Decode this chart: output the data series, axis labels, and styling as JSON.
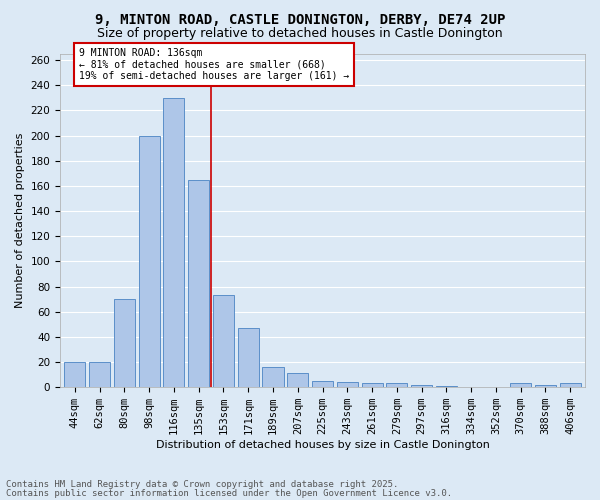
{
  "title": "9, MINTON ROAD, CASTLE DONINGTON, DERBY, DE74 2UP",
  "subtitle": "Size of property relative to detached houses in Castle Donington",
  "xlabel": "Distribution of detached houses by size in Castle Donington",
  "ylabel": "Number of detached properties",
  "footnote1": "Contains HM Land Registry data © Crown copyright and database right 2025.",
  "footnote2": "Contains public sector information licensed under the Open Government Licence v3.0.",
  "bar_labels": [
    "44sqm",
    "62sqm",
    "80sqm",
    "98sqm",
    "116sqm",
    "135sqm",
    "153sqm",
    "171sqm",
    "189sqm",
    "207sqm",
    "225sqm",
    "243sqm",
    "261sqm",
    "279sqm",
    "297sqm",
    "316sqm",
    "334sqm",
    "352sqm",
    "370sqm",
    "388sqm",
    "406sqm"
  ],
  "bar_values": [
    20,
    20,
    70,
    200,
    230,
    165,
    73,
    47,
    16,
    11,
    5,
    4,
    3,
    3,
    2,
    1,
    0,
    0,
    3,
    2,
    3
  ],
  "bar_color": "#aec6e8",
  "bar_edge_color": "#5b8fc9",
  "vline_x": 5.5,
  "vline_color": "#cc0000",
  "annotation_text": "9 MINTON ROAD: 136sqm\n← 81% of detached houses are smaller (668)\n19% of semi-detached houses are larger (161) →",
  "annotation_box_color": "#ffffff",
  "annotation_box_edge": "#cc0000",
  "ylim": [
    0,
    265
  ],
  "yticks": [
    0,
    20,
    40,
    60,
    80,
    100,
    120,
    140,
    160,
    180,
    200,
    220,
    240,
    260
  ],
  "bg_color": "#dce9f5",
  "grid_color": "#ffffff",
  "title_fontsize": 10,
  "subtitle_fontsize": 9,
  "axis_fontsize": 8,
  "tick_fontsize": 7.5,
  "footnote_fontsize": 6.5
}
